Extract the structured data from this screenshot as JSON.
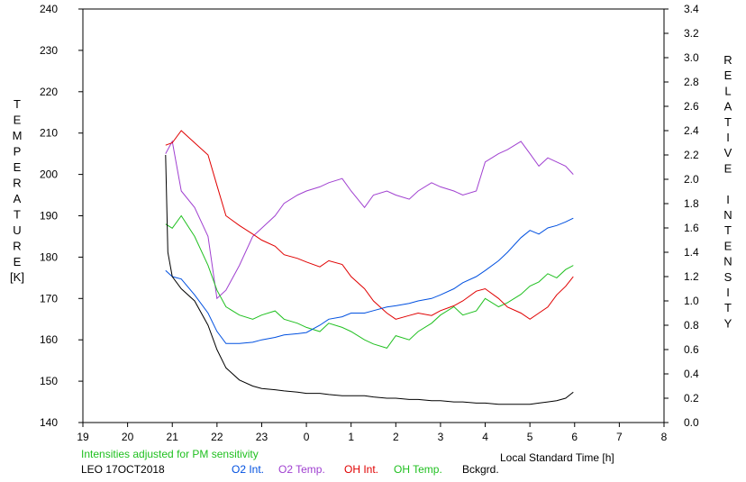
{
  "chart_data": {
    "type": "line",
    "y_left_label": "TEMPERATURE",
    "y_left_unit": "[K]",
    "y_right_label": "RELATIVE INTENSITY",
    "xlabel": "Local Standard Time [h]",
    "x_ticks": [
      "19",
      "20",
      "21",
      "22",
      "23",
      "0",
      "1",
      "2",
      "3",
      "4",
      "5",
      "6",
      "7",
      "8"
    ],
    "xlim": [
      19,
      32
    ],
    "ylim_left": [
      140,
      240
    ],
    "y_left_ticks": [
      "140",
      "150",
      "160",
      "170",
      "180",
      "190",
      "200",
      "210",
      "220",
      "230",
      "240"
    ],
    "ylim_right": [
      0.0,
      3.4
    ],
    "y_right_ticks": [
      "0.0",
      "0.2",
      "0.4",
      "0.6",
      "0.8",
      "1.0",
      "1.2",
      "1.4",
      "1.6",
      "1.8",
      "2.0",
      "2.2",
      "2.4",
      "2.6",
      "2.8",
      "3.0",
      "3.2",
      "3.4"
    ],
    "annotation": "Intensities adjusted for PM sensitivity",
    "station": "LEO 17OCT2018",
    "series": [
      {
        "name": "O2 Int.",
        "color": "#0050e0",
        "axis": "right",
        "x": [
          20.85,
          21.0,
          21.2,
          21.5,
          21.8,
          22.0,
          22.2,
          22.5,
          22.8,
          23.0,
          23.3,
          23.5,
          23.8,
          24.0,
          24.3,
          24.5,
          24.8,
          25.0,
          25.3,
          25.5,
          25.8,
          26.0,
          26.3,
          26.5,
          26.8,
          27.0,
          27.3,
          27.5,
          27.8,
          28.0,
          28.3,
          28.5,
          28.8,
          29.0,
          29.2,
          29.4,
          29.6,
          29.8,
          29.97
        ],
        "y": [
          1.25,
          1.2,
          1.18,
          1.05,
          0.9,
          0.75,
          0.65,
          0.65,
          0.66,
          0.68,
          0.7,
          0.72,
          0.73,
          0.74,
          0.8,
          0.85,
          0.87,
          0.9,
          0.9,
          0.92,
          0.95,
          0.96,
          0.98,
          1.0,
          1.02,
          1.05,
          1.1,
          1.15,
          1.2,
          1.25,
          1.33,
          1.4,
          1.52,
          1.58,
          1.55,
          1.6,
          1.62,
          1.65,
          1.68
        ]
      },
      {
        "name": "O2 Temp.",
        "color": "#a040d0",
        "axis": "left",
        "x": [
          20.85,
          21.0,
          21.2,
          21.5,
          21.8,
          22.0,
          22.2,
          22.5,
          22.8,
          23.0,
          23.3,
          23.5,
          23.8,
          24.0,
          24.3,
          24.5,
          24.8,
          25.0,
          25.3,
          25.5,
          25.8,
          26.0,
          26.3,
          26.5,
          26.8,
          27.0,
          27.3,
          27.5,
          27.8,
          28.0,
          28.3,
          28.5,
          28.8,
          29.0,
          29.2,
          29.4,
          29.6,
          29.8,
          29.97
        ],
        "y": [
          205,
          208,
          196,
          192,
          185,
          170,
          172,
          178,
          185,
          187,
          190,
          193,
          195,
          196,
          197,
          198,
          199,
          196,
          192,
          195,
          196,
          195,
          194,
          196,
          198,
          197,
          196,
          195,
          196,
          203,
          205,
          206,
          208,
          205,
          202,
          204,
          203,
          202,
          200
        ]
      },
      {
        "name": "OH Int.",
        "color": "#e00000",
        "axis": "right",
        "x": [
          20.85,
          21.0,
          21.2,
          21.5,
          21.8,
          22.0,
          22.2,
          22.5,
          22.8,
          23.0,
          23.3,
          23.5,
          23.8,
          24.0,
          24.3,
          24.5,
          24.8,
          25.0,
          25.3,
          25.5,
          25.8,
          26.0,
          26.3,
          26.5,
          26.8,
          27.0,
          27.3,
          27.5,
          27.8,
          28.0,
          28.3,
          28.5,
          28.8,
          29.0,
          29.2,
          29.4,
          29.6,
          29.8,
          29.97
        ],
        "y": [
          2.28,
          2.3,
          2.4,
          2.3,
          2.2,
          1.95,
          1.7,
          1.62,
          1.55,
          1.5,
          1.45,
          1.38,
          1.35,
          1.32,
          1.28,
          1.33,
          1.3,
          1.2,
          1.1,
          1.0,
          0.9,
          0.85,
          0.88,
          0.9,
          0.88,
          0.92,
          0.96,
          1.0,
          1.08,
          1.1,
          1.02,
          0.95,
          0.9,
          0.85,
          0.9,
          0.95,
          1.05,
          1.12,
          1.2
        ]
      },
      {
        "name": "OH Temp.",
        "color": "#20c020",
        "axis": "left",
        "x": [
          20.85,
          21.0,
          21.2,
          21.5,
          21.8,
          22.0,
          22.2,
          22.5,
          22.8,
          23.0,
          23.3,
          23.5,
          23.8,
          24.0,
          24.3,
          24.5,
          24.8,
          25.0,
          25.3,
          25.5,
          25.8,
          26.0,
          26.3,
          26.5,
          26.8,
          27.0,
          27.3,
          27.5,
          27.8,
          28.0,
          28.3,
          28.5,
          28.8,
          29.0,
          29.2,
          29.4,
          29.6,
          29.8,
          29.97
        ],
        "y": [
          188,
          187,
          190,
          185,
          178,
          172,
          168,
          166,
          165,
          166,
          167,
          165,
          164,
          163,
          162,
          164,
          163,
          162,
          160,
          159,
          158,
          161,
          160,
          162,
          164,
          166,
          168,
          166,
          167,
          170,
          168,
          169,
          171,
          173,
          174,
          176,
          175,
          177,
          178
        ]
      },
      {
        "name": "Bckgrd.",
        "color": "#000000",
        "axis": "right",
        "x": [
          20.85,
          20.9,
          21.0,
          21.2,
          21.5,
          21.8,
          22.0,
          22.2,
          22.5,
          22.8,
          23.0,
          23.3,
          23.5,
          23.8,
          24.0,
          24.3,
          24.5,
          24.8,
          25.0,
          25.3,
          25.5,
          25.8,
          26.0,
          26.3,
          26.5,
          26.8,
          27.0,
          27.3,
          27.5,
          27.8,
          28.0,
          28.3,
          28.5,
          28.8,
          29.0,
          29.2,
          29.4,
          29.6,
          29.8,
          29.97
        ],
        "y": [
          2.2,
          1.4,
          1.2,
          1.1,
          1.0,
          0.8,
          0.6,
          0.45,
          0.35,
          0.3,
          0.28,
          0.27,
          0.26,
          0.25,
          0.24,
          0.24,
          0.23,
          0.22,
          0.22,
          0.22,
          0.21,
          0.2,
          0.2,
          0.19,
          0.19,
          0.18,
          0.18,
          0.17,
          0.17,
          0.16,
          0.16,
          0.15,
          0.15,
          0.15,
          0.15,
          0.16,
          0.17,
          0.18,
          0.2,
          0.25
        ]
      }
    ]
  }
}
